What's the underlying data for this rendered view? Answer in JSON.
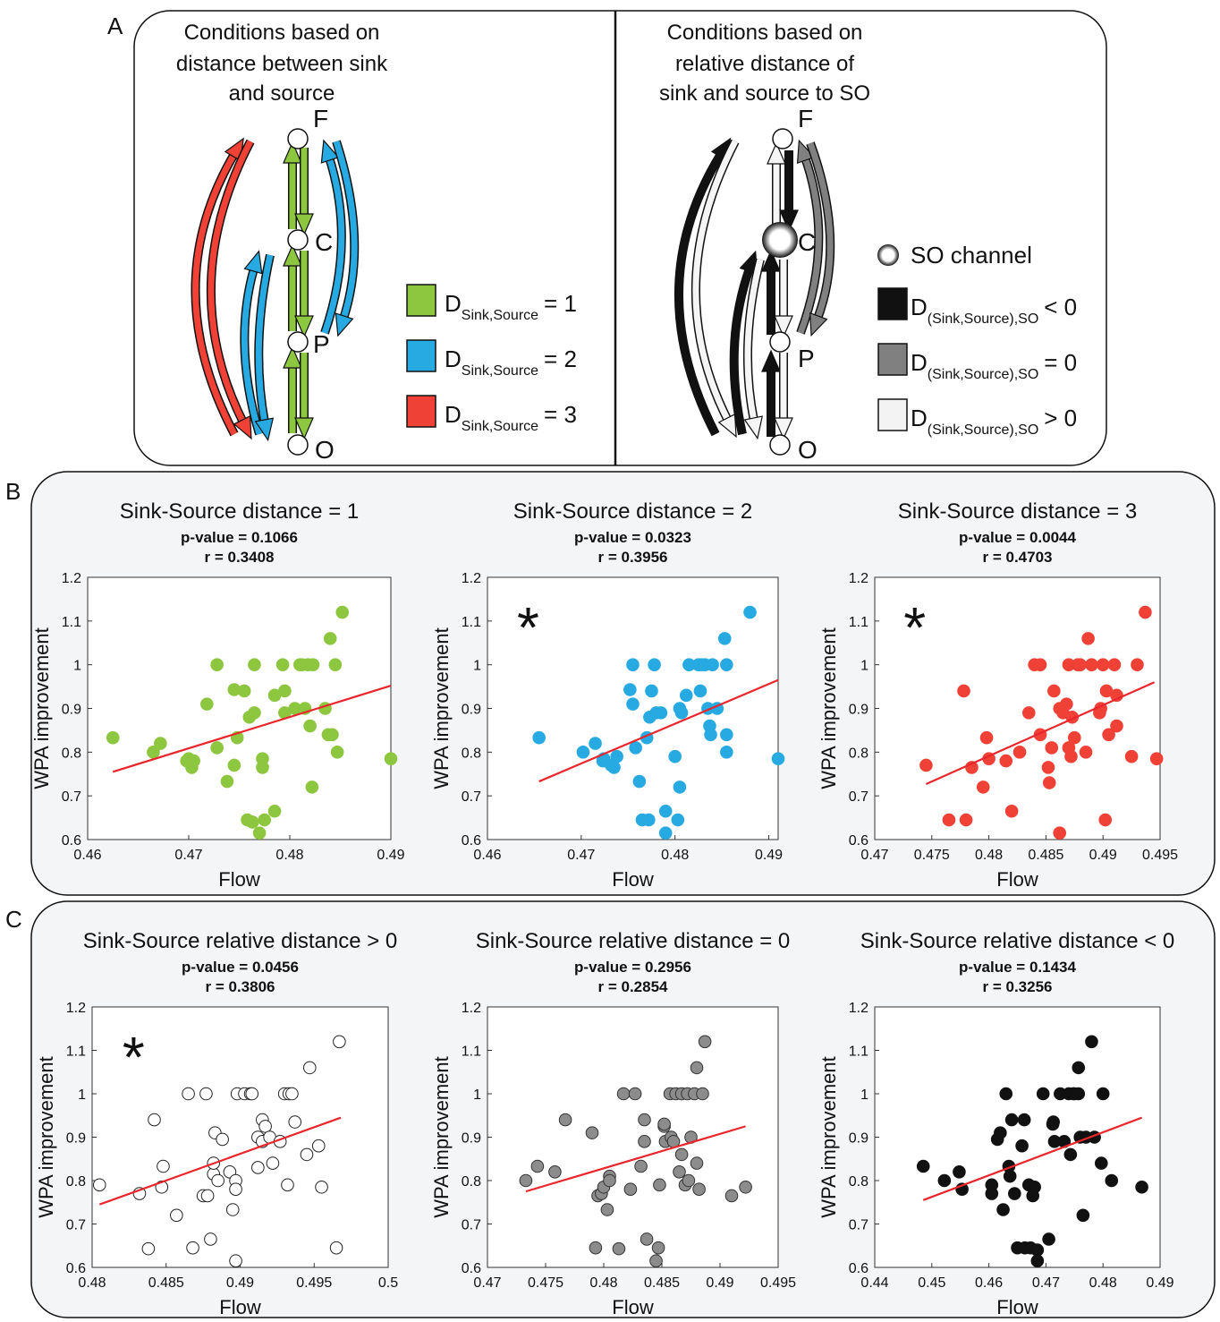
{
  "diagram": {
    "panel_label": "A",
    "left": {
      "heading": [
        "Conditions based on",
        "distance between sink",
        "and source"
      ],
      "nodes": [
        "F",
        "C",
        "P",
        "O"
      ],
      "legend": [
        {
          "symbol": "D",
          "subscript": "Sink,Source",
          "relation": "= 1",
          "color": "#8dc63f"
        },
        {
          "symbol": "D",
          "subscript": "Sink,Source",
          "relation": "= 2",
          "color": "#27aae1"
        },
        {
          "symbol": "D",
          "subscript": "Sink,Source",
          "relation": "= 3",
          "color": "#ef4136"
        }
      ]
    },
    "right": {
      "heading": [
        "Conditions based on",
        "relative distance of",
        "sink and source to SO"
      ],
      "nodes": [
        "F",
        "C",
        "P",
        "O"
      ],
      "so_label": "SO channel",
      "legend": [
        {
          "symbol": "D",
          "subscript": "(Sink,Source),SO",
          "relation": "< 0",
          "color": "#111111"
        },
        {
          "symbol": "D",
          "subscript": "(Sink,Source),SO",
          "relation": "= 0",
          "color": "#808080"
        },
        {
          "symbol": "D",
          "subscript": "(Sink,Source),SO",
          "relation": "> 0",
          "color": "#f3f3f3"
        }
      ]
    }
  },
  "panel_b_label": "B",
  "panel_c_label": "C",
  "chart_data": [
    {
      "type": "scatter",
      "title": "Sink-Source distance = 1",
      "stats": [
        "p-value = 0.1066",
        "r = 0.3408"
      ],
      "xlabel": "Flow",
      "ylabel": "WPA improvement",
      "color": "#8dc63f",
      "edgecolor": "#8dc63f",
      "x": [
        0.4625,
        0.4665,
        0.4672,
        0.4698,
        0.47,
        0.4703,
        0.4705,
        0.4718,
        0.4728,
        0.4728,
        0.4738,
        0.4745,
        0.4745,
        0.4748,
        0.4755,
        0.4758,
        0.476,
        0.4763,
        0.4765,
        0.4765,
        0.477,
        0.4773,
        0.4773,
        0.4775,
        0.4785,
        0.4785,
        0.4793,
        0.4795,
        0.4795,
        0.4805,
        0.481,
        0.4812,
        0.4815,
        0.4818,
        0.482,
        0.4822,
        0.4823,
        0.4835,
        0.4838,
        0.484,
        0.4842,
        0.4845,
        0.4847,
        0.4852,
        0.49
      ],
      "y": [
        0.833,
        0.8,
        0.82,
        0.78,
        0.785,
        0.765,
        0.78,
        0.91,
        1,
        0.81,
        0.733,
        0.77,
        0.943,
        0.833,
        0.94,
        0.645,
        0.88,
        0.64,
        1,
        0.89,
        0.615,
        0.765,
        0.785,
        0.645,
        0.665,
        0.93,
        1,
        0.89,
        0.94,
        0.9,
        1,
        1,
        0.9,
        1,
        0.86,
        0.72,
        1,
        0.9,
        0.84,
        1.06,
        0.84,
        1,
        0.8,
        1.12,
        0.785
      ],
      "fit": {
        "x": [
          0.4625,
          0.49
        ],
        "y": [
          0.755,
          0.952
        ],
        "color": "#e8262b"
      },
      "xlim": [
        0.46,
        0.49
      ],
      "xticks": [
        0.46,
        0.47,
        0.48,
        0.49
      ],
      "ylim": [
        0.6,
        1.2
      ],
      "yticks": [
        0.6,
        0.7,
        0.8,
        0.9,
        1,
        1.1,
        1.2
      ]
    },
    {
      "type": "scatter",
      "title": "Sink-Source distance = 2",
      "stats": [
        "p-value = 0.0323",
        "r = 0.3956"
      ],
      "xlabel": "Flow",
      "ylabel": "WPA improvement",
      "annotation": "*",
      "color": "#27aae1",
      "edgecolor": "#27aae1",
      "x": [
        0.4655,
        0.4702,
        0.4715,
        0.4723,
        0.4724,
        0.4732,
        0.4735,
        0.4738,
        0.4752,
        0.4755,
        0.4755,
        0.4758,
        0.4762,
        0.4765,
        0.477,
        0.4772,
        0.4773,
        0.4775,
        0.4778,
        0.478,
        0.4785,
        0.479,
        0.479,
        0.48,
        0.4803,
        0.4805,
        0.4805,
        0.4807,
        0.4812,
        0.4815,
        0.4825,
        0.4827,
        0.4828,
        0.4832,
        0.4835,
        0.4837,
        0.4838,
        0.484,
        0.4845,
        0.4853,
        0.4855,
        0.4855,
        0.4855,
        0.488,
        0.491
      ],
      "y": [
        0.833,
        0.8,
        0.82,
        0.78,
        0.785,
        0.77,
        0.765,
        0.79,
        0.943,
        0.91,
        1,
        0.81,
        0.733,
        0.645,
        0.833,
        0.645,
        0.88,
        0.94,
        1,
        0.89,
        0.89,
        0.665,
        0.615,
        0.79,
        0.645,
        0.9,
        0.72,
        0.89,
        0.93,
        1,
        1,
        0.94,
        1,
        1,
        0.9,
        0.86,
        0.84,
        1,
        0.9,
        1.06,
        0.84,
        1,
        0.8,
        1.12,
        0.785
      ],
      "fit": {
        "x": [
          0.4655,
          0.491
        ],
        "y": [
          0.733,
          0.965
        ],
        "color": "#e8262b"
      },
      "xlim": [
        0.46,
        0.491
      ],
      "xticks": [
        0.46,
        0.47,
        0.48,
        0.49
      ],
      "ylim": [
        0.6,
        1.2
      ],
      "yticks": [
        0.6,
        0.7,
        0.8,
        0.9,
        1,
        1.1,
        1.2
      ]
    },
    {
      "type": "scatter",
      "title": "Sink-Source distance = 3",
      "stats": [
        "p-value = 0.0044",
        "r = 0.4703"
      ],
      "xlabel": "Flow",
      "ylabel": "WPA improvement",
      "annotation": "*",
      "color": "#ef4136",
      "edgecolor": "#ef4136",
      "x": [
        0.4745,
        0.4765,
        0.4778,
        0.478,
        0.4785,
        0.4795,
        0.4798,
        0.48,
        0.4815,
        0.482,
        0.4827,
        0.4835,
        0.484,
        0.4845,
        0.4845,
        0.4852,
        0.4853,
        0.4855,
        0.4857,
        0.4862,
        0.4862,
        0.4865,
        0.4868,
        0.487,
        0.487,
        0.4872,
        0.4873,
        0.4875,
        0.4878,
        0.488,
        0.4885,
        0.4887,
        0.489,
        0.4897,
        0.4898,
        0.49,
        0.4902,
        0.4903,
        0.4905,
        0.491,
        0.4912,
        0.4912,
        0.4925,
        0.493,
        0.4937,
        0.4947
      ],
      "y": [
        0.77,
        0.645,
        0.94,
        0.645,
        0.765,
        0.72,
        0.833,
        0.785,
        0.78,
        0.665,
        0.8,
        0.89,
        1,
        1,
        0.84,
        0.765,
        0.73,
        0.81,
        0.94,
        0.615,
        0.9,
        0.89,
        0.91,
        1,
        0.81,
        0.79,
        0.88,
        0.833,
        1,
        1,
        0.8,
        1.06,
        1,
        0.89,
        0.9,
        1,
        0.645,
        0.94,
        0.84,
        1,
        0.93,
        0.86,
        0.79,
        1,
        1.12,
        0.785
      ],
      "fit": {
        "x": [
          0.4745,
          0.4945
        ],
        "y": [
          0.727,
          0.96
        ],
        "color": "#e8262b"
      },
      "xlim": [
        0.47,
        0.495
      ],
      "xticks": [
        0.47,
        0.475,
        0.48,
        0.485,
        0.49,
        0.495
      ],
      "ylim": [
        0.6,
        1.2
      ],
      "yticks": [
        0.6,
        0.7,
        0.8,
        0.9,
        1,
        1.1,
        1.2
      ]
    },
    {
      "type": "scatter",
      "title": "Sink-Source relative distance > 0",
      "stats": [
        "p-value = 0.0456",
        "r = 0.3806"
      ],
      "xlabel": "Flow",
      "ylabel": "WPA improvement",
      "annotation": "*",
      "color": "#ffffff",
      "edgecolor": "#222222",
      "x": [
        0.4805,
        0.4832,
        0.4838,
        0.4842,
        0.4847,
        0.4848,
        0.4857,
        0.4865,
        0.4868,
        0.4875,
        0.4877,
        0.4878,
        0.488,
        0.4882,
        0.4882,
        0.4883,
        0.4885,
        0.4888,
        0.4893,
        0.4895,
        0.4897,
        0.4897,
        0.4897,
        0.4898,
        0.4903,
        0.4907,
        0.4908,
        0.4912,
        0.4912,
        0.4915,
        0.4915,
        0.4917,
        0.492,
        0.4922,
        0.4927,
        0.493,
        0.4932,
        0.4933,
        0.4935,
        0.4937,
        0.4945,
        0.4947,
        0.4953,
        0.4955,
        0.4965,
        0.4967
      ],
      "y": [
        0.79,
        0.77,
        0.643,
        0.94,
        0.785,
        0.833,
        0.72,
        1,
        0.645,
        0.765,
        1,
        0.765,
        0.665,
        0.815,
        0.84,
        0.91,
        0.8,
        0.895,
        0.82,
        0.733,
        0.615,
        0.8,
        0.78,
        1,
        1,
        1,
        1,
        0.83,
        0.9,
        0.89,
        0.94,
        0.925,
        0.9,
        0.84,
        0.89,
        1,
        0.79,
        1,
        1,
        0.935,
        0.86,
        1.06,
        0.88,
        0.785,
        0.645,
        1.12
      ],
      "fit": {
        "x": [
          0.4805,
          0.4968
        ],
        "y": [
          0.745,
          0.945
        ],
        "color": "#e8262b"
      },
      "xlim": [
        0.48,
        0.5
      ],
      "xticks": [
        0.48,
        0.485,
        0.49,
        0.495,
        0.5
      ],
      "ylim": [
        0.6,
        1.2
      ],
      "yticks": [
        0.6,
        0.7,
        0.8,
        0.9,
        1,
        1.1,
        1.2
      ]
    },
    {
      "type": "scatter",
      "title": "Sink-Source relative distance = 0",
      "stats": [
        "p-value = 0.2956",
        "r = 0.2854"
      ],
      "xlabel": "Flow",
      "ylabel": "WPA improvement",
      "color": "#8c8c8c",
      "edgecolor": "#333333",
      "x": [
        0.4733,
        0.4743,
        0.4758,
        0.4767,
        0.479,
        0.4793,
        0.4795,
        0.4798,
        0.48,
        0.4803,
        0.4805,
        0.4805,
        0.4813,
        0.4817,
        0.4823,
        0.4827,
        0.4832,
        0.4835,
        0.4835,
        0.4837,
        0.4845,
        0.4847,
        0.4848,
        0.4852,
        0.4853,
        0.4852,
        0.4857,
        0.4858,
        0.486,
        0.4862,
        0.4865,
        0.4867,
        0.4867,
        0.487,
        0.4872,
        0.4873,
        0.4875,
        0.4878,
        0.488,
        0.488,
        0.4882,
        0.4885,
        0.4887,
        0.491,
        0.4922
      ],
      "y": [
        0.8,
        0.833,
        0.82,
        0.94,
        0.91,
        0.645,
        0.765,
        0.77,
        0.785,
        0.733,
        0.81,
        0.8,
        0.643,
        1,
        0.78,
        1,
        0.833,
        0.94,
        0.89,
        0.665,
        0.615,
        0.645,
        0.79,
        0.925,
        0.89,
        0.93,
        1,
        0.9,
        0.89,
        1,
        0.82,
        1,
        0.86,
        0.79,
        1,
        0.8,
        0.9,
        1,
        0.84,
        1.06,
        0.78,
        1,
        1.12,
        0.765,
        0.785
      ],
      "fit": {
        "x": [
          0.4733,
          0.4922
        ],
        "y": [
          0.775,
          0.925
        ],
        "color": "#e8262b"
      },
      "xlim": [
        0.47,
        0.495
      ],
      "xticks": [
        0.47,
        0.475,
        0.48,
        0.485,
        0.49,
        0.495
      ],
      "ylim": [
        0.6,
        1.2
      ],
      "yticks": [
        0.6,
        0.7,
        0.8,
        0.9,
        1,
        1.1,
        1.2
      ]
    },
    {
      "type": "scatter",
      "title": "Sink-Source relative distance < 0",
      "stats": [
        "p-value = 0.1434",
        "r = 0.3256"
      ],
      "xlabel": "Flow",
      "ylabel": "WPA improvement",
      "color": "#111111",
      "edgecolor": "#111111",
      "x": [
        0.4485,
        0.4522,
        0.4548,
        0.4553,
        0.4605,
        0.4605,
        0.4615,
        0.462,
        0.4625,
        0.463,
        0.4635,
        0.4637,
        0.464,
        0.4645,
        0.465,
        0.4658,
        0.4662,
        0.4663,
        0.467,
        0.4673,
        0.4677,
        0.468,
        0.4685,
        0.4685,
        0.4695,
        0.4705,
        0.4712,
        0.4713,
        0.4715,
        0.4725,
        0.4732,
        0.474,
        0.4743,
        0.4748,
        0.475,
        0.4757,
        0.476,
        0.4757,
        0.4765,
        0.477,
        0.478,
        0.4785,
        0.4797,
        0.48,
        0.4815,
        0.4868
      ],
      "y": [
        0.833,
        0.8,
        0.82,
        0.78,
        0.79,
        0.77,
        0.895,
        0.91,
        0.733,
        1,
        0.833,
        0.81,
        0.94,
        0.77,
        0.645,
        0.88,
        0.94,
        0.645,
        0.79,
        0.645,
        0.765,
        0.785,
        0.64,
        0.615,
        1,
        0.665,
        0.93,
        0.935,
        0.89,
        1,
        0.89,
        1,
        0.86,
        1,
        1,
        1,
        0.9,
        1.06,
        0.72,
        0.9,
        1.12,
        0.9,
        0.84,
        1,
        0.8,
        0.785
      ],
      "fit": {
        "x": [
          0.4485,
          0.4868
        ],
        "y": [
          0.755,
          0.945
        ],
        "color": "#e8262b"
      },
      "xlim": [
        0.44,
        0.49
      ],
      "xticks": [
        0.44,
        0.45,
        0.46,
        0.47,
        0.48,
        0.49
      ],
      "ylim": [
        0.6,
        1.2
      ],
      "yticks": [
        0.6,
        0.7,
        0.8,
        0.9,
        1,
        1.1,
        1.2
      ]
    }
  ]
}
